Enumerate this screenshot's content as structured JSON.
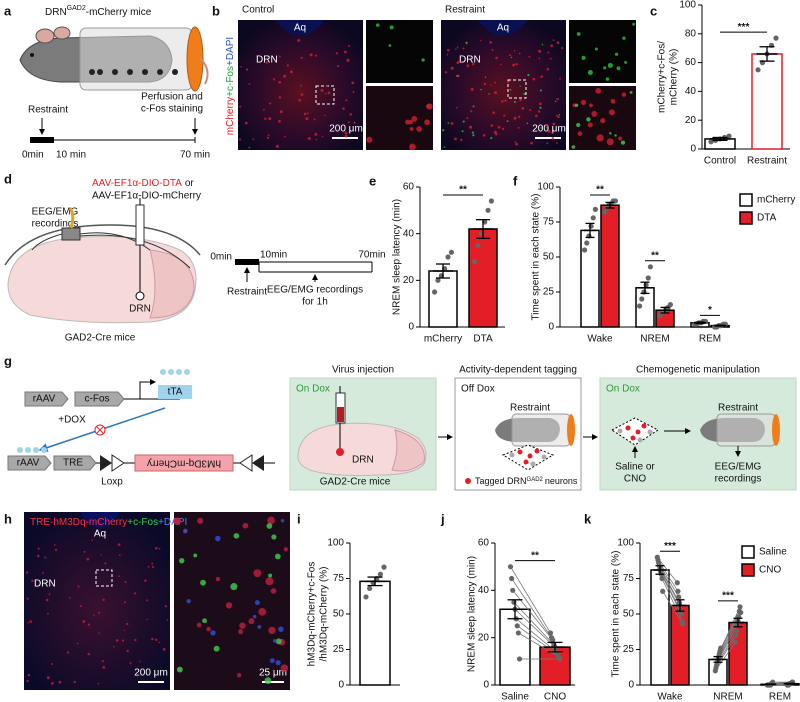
{
  "panels": {
    "a": {
      "label": "a",
      "title": "DRN",
      "title_sup": "GAD2",
      "title_rest": "-mCherry mice",
      "restraint": "Restraint",
      "perfusion": "Perfusion and",
      "staining": "c-Fos staining",
      "t0": "0min",
      "t10": "10 min",
      "t70": "70 min"
    },
    "b": {
      "label": "b",
      "stain": [
        "mCherry",
        "+c-Fos",
        "+DAPI"
      ],
      "images": [
        {
          "title": "Control",
          "aq": "Aq",
          "drn": "DRN",
          "scale": "200 μm"
        },
        {
          "title": "Restraint",
          "aq": "Aq",
          "drn": "DRN",
          "scale": "200 μm"
        }
      ]
    },
    "d": {
      "label": "d",
      "virus_dta": "AAV-EF1α-DIO-DTA",
      "or": "or",
      "virus_mcherry": "AAV-EF1α-DIO-mCherry",
      "eeg": "EEG/EMG",
      "recordings": "recordings",
      "drn": "DRN",
      "mice": "GAD2-Cre mice",
      "timeline": {
        "t0": "0min",
        "t10": "10min",
        "t70": "70min",
        "restraint": "Restraint",
        "eeg": "EEG/EMG recordings",
        "duration": "for 1h"
      }
    },
    "g": {
      "label": "g",
      "construct1": {
        "vector": "rAAV",
        "promoter": "c-Fos",
        "gene": "tTA"
      },
      "dox": "+DOX",
      "construct2": {
        "vector": "rAAV",
        "promoter": "TRE",
        "loxp": "Loxp",
        "gene": "hM3Dq-mCherry"
      },
      "steps": [
        {
          "title": "Virus injection",
          "condition": "On Dox",
          "drn": "DRN",
          "mice": "GAD2-Cre mice"
        },
        {
          "title": "Activity-dependent tagging",
          "condition": "Off Dox",
          "restraint": "Restraint",
          "legend": "Tagged DRN",
          "legend_sup": "GAD2",
          "legend_rest": "neurons"
        },
        {
          "title": "Chemogenetic manipulation",
          "condition": "On Dox",
          "restraint": "Restraint",
          "treatment": "Saline or",
          "treatment2": "CNO",
          "eeg": "EEG/EMG",
          "recordings": "recordings"
        }
      ]
    },
    "h": {
      "label": "h",
      "stain": [
        "TRE-hM3Dq-mCherry",
        "+c-Fos",
        "+DAPI"
      ],
      "aq": "Aq",
      "drn": "DRN",
      "scale1": "200 μm",
      "scale2": "25 μm"
    }
  },
  "chart_data": [
    {
      "panel": "c",
      "type": "bar",
      "ylabel": [
        "mCherry+c-Fos/",
        "mCherry (%)"
      ],
      "categories": [
        "Control",
        "Restraint"
      ],
      "series": [
        {
          "colors": [
            "#ffffff",
            "#ffffff"
          ],
          "edge_colors": [
            "#000000",
            "#e41e26"
          ],
          "values": [
            7,
            66
          ],
          "errors": [
            1,
            5
          ],
          "points": [
            [
              5,
              6,
              7,
              8,
              9
            ],
            [
              55,
              60,
              66,
              72,
              77
            ]
          ]
        }
      ],
      "point_color": "#666666",
      "ylim": [
        0,
        100
      ],
      "yticks": [
        0,
        20,
        40,
        60,
        80,
        100
      ],
      "annotations": [
        "***"
      ]
    },
    {
      "panel": "e",
      "type": "bar",
      "ylabel": [
        "NREM sleep latency (min)"
      ],
      "categories": [
        "mCherry",
        "DTA"
      ],
      "series": [
        {
          "colors": [
            "#ffffff",
            "#e41e26"
          ],
          "edge_colors": [
            "#000000",
            "#000000"
          ],
          "values": [
            24,
            42
          ],
          "errors": [
            3,
            4
          ],
          "points": [
            [
              15,
              20,
              22,
              25,
              30,
              32
            ],
            [
              28,
              35,
              40,
              45,
              50,
              54
            ]
          ]
        }
      ],
      "point_color": "#666666",
      "ylim": [
        0,
        60
      ],
      "yticks": [
        0,
        20,
        40,
        60
      ],
      "annotations": [
        "**"
      ]
    },
    {
      "panel": "f",
      "type": "bar",
      "ylabel": [
        "Time spent in each state (%)"
      ],
      "categories": [
        "Wake",
        "NREM",
        "REM"
      ],
      "series": [
        {
          "name": "mCherry",
          "color": "#ffffff",
          "edge_color": "#000000",
          "values": [
            69,
            28,
            3
          ],
          "errors": [
            5,
            4,
            0.5
          ],
          "points": [
            [
              55,
              60,
              65,
              72,
              78,
              84
            ],
            [
              15,
              20,
              25,
              30,
              35,
              43
            ],
            [
              2,
              2,
              3,
              3,
              4,
              4
            ]
          ]
        },
        {
          "name": "DTA",
          "color": "#e41e26",
          "edge_color": "#000000",
          "values": [
            87,
            12,
            1
          ],
          "errors": [
            2,
            2,
            0.3
          ],
          "points": [
            [
              82,
              85,
              87,
              88,
              90,
              90
            ],
            [
              8,
              10,
              11,
              13,
              14,
              16
            ],
            [
              0,
              0,
              1,
              1,
              2,
              2
            ]
          ]
        }
      ],
      "point_color": "#666666",
      "ylim": [
        0,
        100
      ],
      "yticks": [
        0,
        25,
        50,
        75,
        100
      ],
      "annotations": [
        "**",
        "**",
        "*"
      ]
    },
    {
      "panel": "i",
      "type": "bar",
      "ylabel": [
        "hM3Dq-mCherry+c-Fos",
        "/hM3Dq-mCherry (%)"
      ],
      "categories": [
        null
      ],
      "series": [
        {
          "colors": [
            "#ffffff"
          ],
          "edge_colors": [
            "#000000"
          ],
          "values": [
            73
          ],
          "errors": [
            3
          ],
          "points": [
            [
              62,
              68,
              72,
              75,
              78,
              83
            ]
          ]
        }
      ],
      "point_color": "#666666",
      "ylim": [
        0,
        100
      ],
      "yticks": [
        0,
        25,
        50,
        75,
        100
      ]
    },
    {
      "panel": "j",
      "type": "bar",
      "ylabel": [
        "NREM sleep latency (min)"
      ],
      "categories": [
        "Saline",
        "CNO"
      ],
      "paired": true,
      "series": [
        {
          "colors": [
            "#ffffff",
            "#e41e26"
          ],
          "edge_colors": [
            "#000000",
            "#000000"
          ],
          "values": [
            32,
            16
          ],
          "errors": [
            4,
            2
          ],
          "points": [
            [
              50,
              45,
              40,
              35,
              32,
              28,
              25,
              22,
              11
            ],
            [
              22,
              20,
              19,
              17,
              16,
              14,
              13,
              12,
              11
            ]
          ]
        }
      ],
      "point_color": "#666666",
      "ylim": [
        0,
        60
      ],
      "yticks": [
        0,
        20,
        40,
        60
      ],
      "annotations": [
        "**"
      ]
    },
    {
      "panel": "k",
      "type": "bar",
      "ylabel": [
        "Time spent in each state (%)"
      ],
      "categories": [
        "Wake",
        "NREM",
        "REM"
      ],
      "paired": true,
      "series": [
        {
          "name": "Saline",
          "color": "#ffffff",
          "edge_color": "#000000",
          "values": [
            81,
            18,
            0.5
          ],
          "errors": [
            3,
            2,
            0.2
          ],
          "points": [
            [
              90,
              88,
              86,
              84,
              82,
              80,
              78,
              75,
              66
            ],
            [
              10,
              12,
              14,
              16,
              18,
              20,
              22,
              24,
              26
            ],
            [
              0,
              0,
              0,
              0,
              0,
              0,
              1,
              1,
              2
            ]
          ]
        },
        {
          "name": "CNO",
          "color": "#e41e26",
          "edge_color": "#000000",
          "values": [
            56,
            44,
            0.9
          ],
          "errors": [
            4,
            3,
            0.3
          ],
          "points": [
            [
              72,
              66,
              62,
              58,
              56,
              52,
              50,
              45,
              43
            ],
            [
              30,
              35,
              38,
              42,
              45,
              48,
              52,
              55,
              51
            ],
            [
              0,
              0,
              0,
              1,
              1,
              1,
              1,
              2,
              2
            ]
          ]
        }
      ],
      "point_color": "#666666",
      "ylim": [
        0,
        100
      ],
      "yticks": [
        0,
        25,
        50,
        75,
        100
      ],
      "annotations": [
        "***",
        "***"
      ]
    }
  ]
}
